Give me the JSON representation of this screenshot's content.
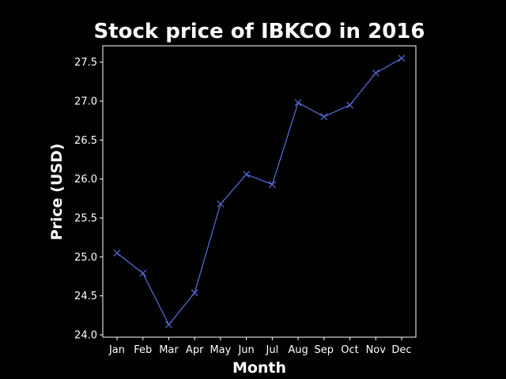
{
  "chart_data": {
    "type": "line",
    "title": "Stock price of IBKCO in 2016",
    "xlabel": "Month",
    "ylabel": "Price (USD)",
    "categories": [
      "Jan",
      "Feb",
      "Mar",
      "Apr",
      "May",
      "Jun",
      "Jul",
      "Aug",
      "Sep",
      "Oct",
      "Nov",
      "Dec"
    ],
    "series": [
      {
        "name": "IBKCO",
        "values": [
          25.05,
          24.79,
          24.13,
          24.54,
          25.68,
          26.06,
          25.93,
          26.98,
          26.8,
          26.95,
          27.36,
          27.55
        ]
      }
    ],
    "ylim": [
      23.97,
      27.71
    ],
    "yticks": [
      "24.0",
      "24.5",
      "25.0",
      "25.5",
      "26.0",
      "26.5",
      "27.0",
      "27.5"
    ],
    "marker": "x",
    "grid": false,
    "colors": {
      "background": "#000000",
      "axes": "#ffffff",
      "text": "#ffffff",
      "line": "#5566cc"
    }
  }
}
